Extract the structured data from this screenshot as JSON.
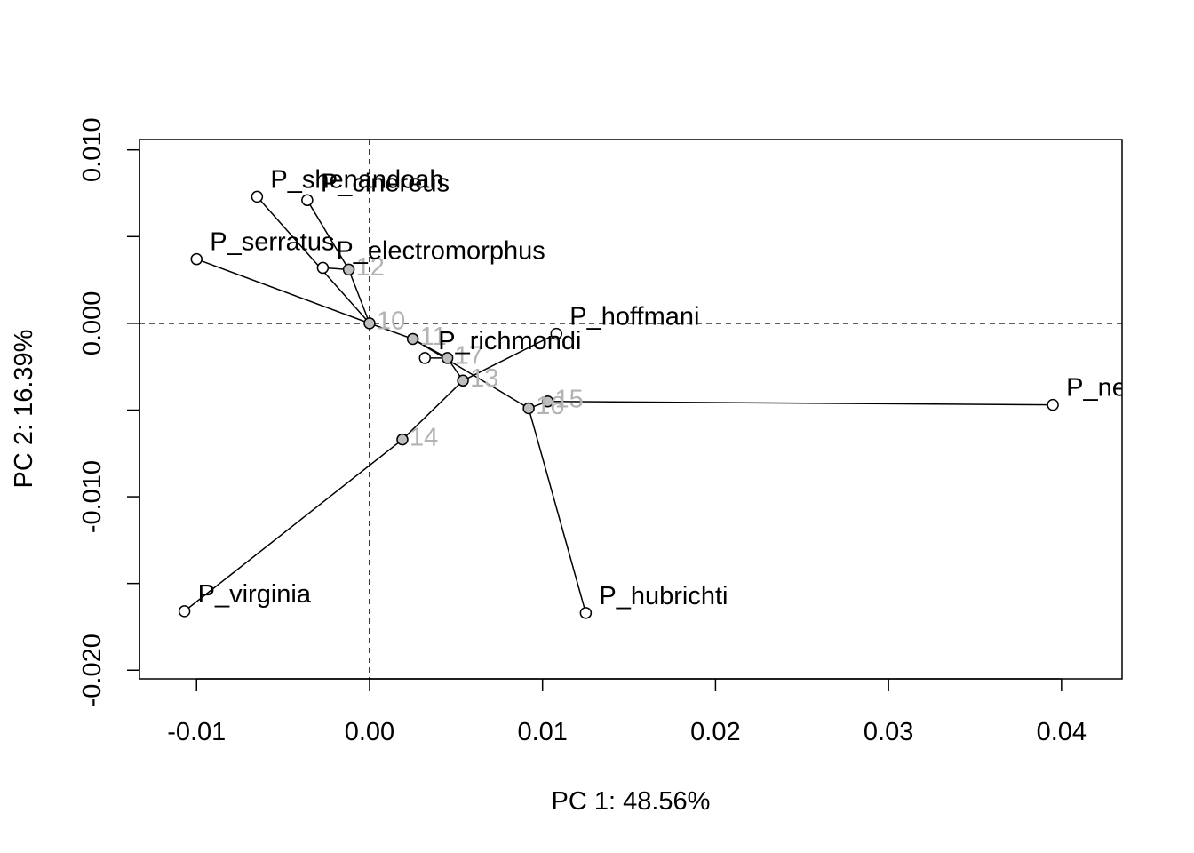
{
  "chart_data": {
    "type": "scatter",
    "subtype": "phylomorphospace",
    "title": "",
    "xlabel": "PC 1: 48.56%",
    "ylabel": "PC 2: 16.39%",
    "xlim": [
      -0.0133,
      0.0435
    ],
    "ylim": [
      -0.0205,
      0.0106
    ],
    "x_ticks": [
      -0.01,
      0.0,
      0.01,
      0.02,
      0.03,
      0.04
    ],
    "x_tick_labels": [
      "-0.01",
      "0.00",
      "0.01",
      "0.02",
      "0.03",
      "0.04"
    ],
    "y_ticks": [
      -0.02,
      -0.015,
      -0.01,
      -0.005,
      0.0,
      0.005,
      0.01
    ],
    "y_tick_labels": [
      "-0.020",
      "",
      "-0.010",
      "",
      "0.000",
      "",
      "0.010"
    ],
    "reference_lines": {
      "x": 0,
      "y": 0,
      "style": "dashed"
    },
    "tips": [
      {
        "label": "P_shenandoah",
        "x": -0.0065,
        "y": 0.0073
      },
      {
        "label": "P_cinereus",
        "x": -0.0036,
        "y": 0.0071
      },
      {
        "label": "P_serratus",
        "x": -0.01,
        "y": 0.0037
      },
      {
        "label": "P_electromorphus",
        "x": -0.0027,
        "y": 0.0032
      },
      {
        "label": "P_hoffmani",
        "x": 0.0108,
        "y": -0.0006
      },
      {
        "label": "P_richmondi",
        "x": 0.0032,
        "y": -0.002
      },
      {
        "label": "P_nettingi",
        "x": 0.0395,
        "y": -0.0047
      },
      {
        "label": "P_virginia",
        "x": -0.0107,
        "y": -0.0166
      },
      {
        "label": "P_hubrichti",
        "x": 0.0125,
        "y": -0.0167
      }
    ],
    "nodes": [
      {
        "label": "10",
        "x": 0.0,
        "y": 0.0
      },
      {
        "label": "11",
        "x": 0.0025,
        "y": -0.0009
      },
      {
        "label": "12",
        "x": -0.0012,
        "y": 0.0031
      },
      {
        "label": "13",
        "x": 0.0054,
        "y": -0.0033
      },
      {
        "label": "14",
        "x": 0.0019,
        "y": -0.0067
      },
      {
        "label": "15",
        "x": 0.0103,
        "y": -0.0045
      },
      {
        "label": "16",
        "x": 0.0092,
        "y": -0.0049
      },
      {
        "label": "17",
        "x": 0.0045,
        "y": -0.002
      }
    ],
    "edges": [
      [
        "10",
        "P_serratus"
      ],
      [
        "10",
        "12"
      ],
      [
        "12",
        "P_cinereus"
      ],
      [
        "12",
        "P_electromorphus"
      ],
      [
        "10",
        "P_shenandoah"
      ],
      [
        "10",
        "11"
      ],
      [
        "11",
        "17"
      ],
      [
        "17",
        "P_richmondi"
      ],
      [
        "11",
        "16"
      ],
      [
        "16",
        "15"
      ],
      [
        "15",
        "P_nettingi"
      ],
      [
        "16",
        "P_hubrichti"
      ],
      [
        "17",
        "13"
      ],
      [
        "13",
        "P_hoffmani"
      ],
      [
        "13",
        "14"
      ],
      [
        "14",
        "P_virginia"
      ]
    ],
    "colors": {
      "tip_fill": "#ffffff",
      "node_fill": "#bebebe",
      "line": "#000000",
      "node_label": "#b3b3b3"
    }
  }
}
